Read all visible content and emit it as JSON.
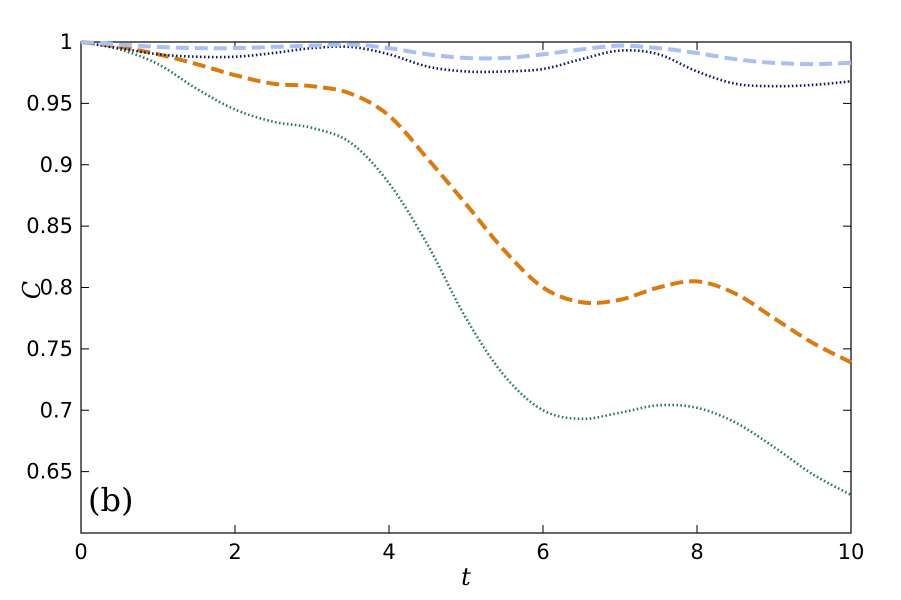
{
  "chart_data": {
    "type": "line",
    "title": "",
    "xlabel": "t",
    "ylabel": "C",
    "panel_label": "(b)",
    "xlim": [
      0,
      10
    ],
    "ylim": [
      0.6,
      1.0
    ],
    "xticks": [
      0,
      2,
      4,
      6,
      8,
      10
    ],
    "xtick_labels": [
      "0",
      "2",
      "4",
      "6",
      "8",
      "10"
    ],
    "yticks": [
      0.65,
      0.7,
      0.75,
      0.8,
      0.85,
      0.9,
      0.95,
      1.0
    ],
    "ytick_labels": [
      "0.65",
      "0.7",
      "0.75",
      "0.8",
      "0.85",
      "0.9",
      "0.95",
      "1"
    ],
    "grid": false,
    "series": [
      {
        "style": "dashed",
        "color": "#aabff2",
        "x": [
          0,
          0.5,
          1,
          1.5,
          2,
          2.5,
          3,
          3.5,
          4,
          4.5,
          5,
          5.5,
          6,
          6.5,
          7,
          7.5,
          8,
          8.5,
          9,
          9.5,
          10
        ],
        "values": [
          1.0,
          0.998,
          0.996,
          0.995,
          0.995,
          0.996,
          0.997,
          0.998,
          0.995,
          0.99,
          0.987,
          0.987,
          0.99,
          0.994,
          0.997,
          0.995,
          0.991,
          0.986,
          0.983,
          0.982,
          0.983
        ]
      },
      {
        "style": "dotted",
        "color": "#101a66",
        "x": [
          0,
          0.5,
          1,
          1.5,
          2,
          2.5,
          3,
          3.5,
          4,
          4.5,
          5,
          5.5,
          6,
          6.5,
          7,
          7.5,
          8,
          8.5,
          9,
          9.5,
          10
        ],
        "values": [
          1.0,
          0.995,
          0.99,
          0.988,
          0.988,
          0.991,
          0.995,
          0.996,
          0.99,
          0.98,
          0.976,
          0.976,
          0.978,
          0.986,
          0.993,
          0.99,
          0.976,
          0.966,
          0.964,
          0.965,
          0.968
        ]
      },
      {
        "style": "dashed",
        "color": "#d97a12",
        "x": [
          0,
          0.5,
          1,
          1.5,
          2,
          2.5,
          3,
          3.5,
          4,
          4.5,
          5,
          5.5,
          6,
          6.5,
          7,
          7.5,
          8,
          8.5,
          9,
          9.5,
          10
        ],
        "values": [
          1.0,
          0.996,
          0.99,
          0.982,
          0.973,
          0.966,
          0.964,
          0.958,
          0.94,
          0.905,
          0.868,
          0.83,
          0.8,
          0.788,
          0.79,
          0.8,
          0.805,
          0.795,
          0.775,
          0.755,
          0.739
        ]
      },
      {
        "style": "dotted",
        "color": "#2a7a55",
        "x": [
          0,
          0.5,
          1,
          1.5,
          2,
          2.5,
          3,
          3.5,
          4,
          4.5,
          5,
          5.5,
          6,
          6.5,
          7,
          7.5,
          8,
          8.5,
          9,
          9.5,
          10
        ],
        "values": [
          1.0,
          0.994,
          0.982,
          0.962,
          0.945,
          0.935,
          0.93,
          0.918,
          0.885,
          0.835,
          0.775,
          0.728,
          0.7,
          0.693,
          0.698,
          0.704,
          0.702,
          0.69,
          0.67,
          0.648,
          0.631
        ]
      }
    ]
  }
}
